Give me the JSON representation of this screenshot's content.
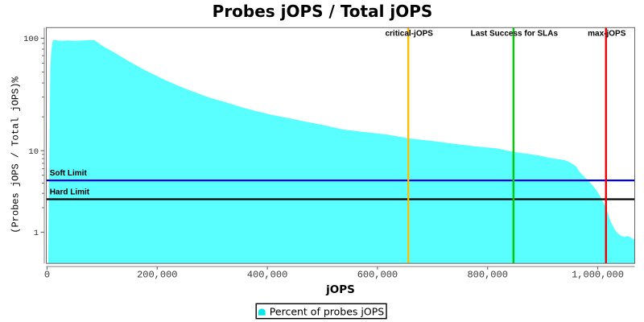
{
  "chart_data": {
    "type": "area",
    "title": "Probes jOPS / Total jOPS",
    "xlabel": "jOPS",
    "ylabel": "(Probes jOPS / Total jOPS)%",
    "legend": [
      "Percent of probes jOPS"
    ],
    "grid": false,
    "legend_position": "bottom",
    "colors": {
      "area_fill": "#59ffff",
      "legend_marker": "#00e8e8",
      "critical_line": "#ffbe00",
      "success_line": "#00cc00",
      "max_line": "#ee0000",
      "soft_limit_line": "#0000e6",
      "hard_limit_line": "#000000"
    },
    "xaxis": {
      "min": 0,
      "max": 1067000,
      "ticks": [
        {
          "value": 0,
          "label": "0"
        },
        {
          "value": 200000,
          "label": "200,000"
        },
        {
          "value": 400000,
          "label": "400,000"
        },
        {
          "value": 600000,
          "label": "600,000"
        },
        {
          "value": 800000,
          "label": "800,000"
        },
        {
          "value": 1000000,
          "label": "1,000,000"
        }
      ]
    },
    "yaxis": {
      "scale": "log",
      "major_ticks": [
        {
          "value": 100,
          "label": "100"
        },
        {
          "value": 10,
          "label": "10"
        },
        {
          "value": 1,
          "label": "1"
        }
      ],
      "minor_ticks": [
        90,
        80,
        70,
        60,
        50,
        40,
        30,
        20,
        9,
        8,
        7,
        6,
        5,
        4,
        3,
        2
      ]
    },
    "markers": [
      {
        "label": "critical-jOPS",
        "value": 656000,
        "color_key": "critical_line"
      },
      {
        "label": "Last Success for SLAs",
        "value": 847000,
        "color_key": "success_line"
      },
      {
        "label": "max-jOPS",
        "value": 1015000,
        "color_key": "max_line"
      }
    ],
    "limits": [
      {
        "label": "Soft Limit",
        "value": 4.32,
        "color_key": "soft_limit_line"
      },
      {
        "label": "Hard Limit",
        "value": 2.54,
        "color_key": "hard_limit_line"
      }
    ],
    "series": [
      {
        "name": "Percent of probes jOPS",
        "baseline": 0.4,
        "points": [
          [
            1900,
            0.4
          ],
          [
            5850,
            53
          ],
          [
            7450,
            76
          ],
          [
            9200,
            90
          ],
          [
            10800,
            96
          ],
          [
            13000,
            96.5
          ],
          [
            18000,
            95.8
          ],
          [
            25600,
            94.9
          ],
          [
            38700,
            95.5
          ],
          [
            51900,
            94.9
          ],
          [
            65000,
            95.5
          ],
          [
            78200,
            96.3
          ],
          [
            86500,
            95.8
          ],
          [
            97000,
            88
          ],
          [
            104500,
            83.3
          ],
          [
            119000,
            76.2
          ],
          [
            148300,
            62.5
          ],
          [
            177600,
            52.1
          ],
          [
            206800,
            44.2
          ],
          [
            236000,
            38.1
          ],
          [
            265300,
            33.5
          ],
          [
            294500,
            29.7
          ],
          [
            323700,
            27.0
          ],
          [
            352900,
            24.4
          ],
          [
            382200,
            22.3
          ],
          [
            411400,
            20.7
          ],
          [
            440600,
            19.4
          ],
          [
            469900,
            18.1
          ],
          [
            499100,
            17.0
          ],
          [
            538600,
            15.4
          ],
          [
            579500,
            14.6
          ],
          [
            618900,
            13.9
          ],
          [
            655500,
            12.9
          ],
          [
            699300,
            12.2
          ],
          [
            740200,
            11.5
          ],
          [
            779700,
            10.9
          ],
          [
            816200,
            10.5
          ],
          [
            845500,
            9.7
          ],
          [
            860000,
            9.4
          ],
          [
            879400,
            9.03
          ],
          [
            894000,
            8.71
          ],
          [
            908600,
            8.29
          ],
          [
            923200,
            7.97
          ],
          [
            933500,
            7.79
          ],
          [
            940800,
            7.63
          ],
          [
            946600,
            7.36
          ],
          [
            952500,
            6.99
          ],
          [
            956900,
            6.73
          ],
          [
            961300,
            6.35
          ],
          [
            967100,
            5.5
          ],
          [
            974400,
            4.86
          ],
          [
            981700,
            4.38
          ],
          [
            989000,
            3.87
          ],
          [
            996300,
            3.37
          ],
          [
            1002200,
            2.94
          ],
          [
            1007300,
            2.54
          ],
          [
            1011000,
            2.27
          ],
          [
            1015400,
            1.96
          ],
          [
            1018300,
            1.71
          ],
          [
            1021200,
            1.49
          ],
          [
            1024100,
            1.33
          ],
          [
            1027800,
            1.19
          ],
          [
            1031400,
            1.07
          ],
          [
            1035800,
            0.98
          ],
          [
            1041700,
            0.91
          ],
          [
            1049000,
            0.875
          ],
          [
            1053400,
            0.9
          ],
          [
            1057700,
            0.88
          ],
          [
            1067500,
            0.8
          ]
        ]
      }
    ]
  }
}
